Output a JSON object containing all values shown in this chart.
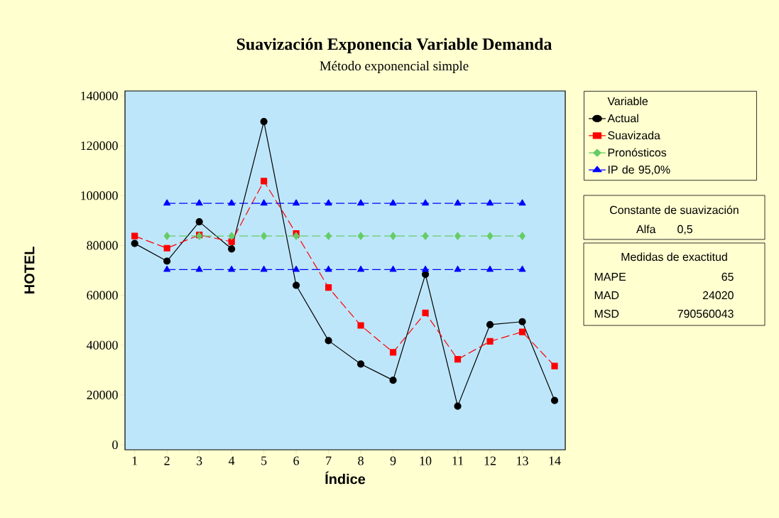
{
  "chart_data": {
    "type": "line",
    "title": "Suavización Exponencia Variable Demanda",
    "subtitle": "Método exponencial simple",
    "xlabel": "Índice",
    "ylabel": "HOTEL",
    "legend_title": "Variable",
    "legend": "right",
    "grid": false,
    "x": [
      1,
      2,
      3,
      4,
      5,
      6,
      7,
      8,
      9,
      10,
      11,
      12,
      13,
      14
    ],
    "xlim": [
      0.7,
      14.33
    ],
    "xticks": [
      1,
      2,
      3,
      4,
      5,
      6,
      7,
      8,
      9,
      10,
      11,
      12,
      13,
      14
    ],
    "ylim": [
      -2000,
      142000
    ],
    "yticks": [
      0,
      20000,
      40000,
      60000,
      80000,
      100000,
      120000,
      140000
    ],
    "series": [
      {
        "name": "Actual",
        "color": "#000000",
        "marker": "circle",
        "line_style": "solid",
        "values": [
          80800,
          73700,
          89500,
          78600,
          129700,
          64000,
          41800,
          32400,
          25900,
          68400,
          15500,
          48200,
          49400,
          17800
        ]
      },
      {
        "name": "Suavizada",
        "color": "#ff0000",
        "marker": "square",
        "line_style": "dashed",
        "values": [
          83800,
          78900,
          84200,
          81500,
          105800,
          84800,
          63100,
          47900,
          37100,
          52900,
          34300,
          41500,
          45300,
          31600
        ]
      },
      {
        "name": "Pronósticos",
        "color": "#66cc66",
        "marker": "diamond",
        "line_style": "dashed",
        "x": [
          2,
          3,
          4,
          5,
          6,
          7,
          8,
          9,
          10,
          11,
          12,
          13
        ],
        "values": [
          83800,
          83800,
          83800,
          83800,
          83800,
          83800,
          83800,
          83800,
          83800,
          83800,
          83800,
          83800
        ]
      },
      {
        "name": "IP de 95,0%",
        "color": "#0000ff",
        "marker": "triangle",
        "line_style": "dashed",
        "x": [
          2,
          3,
          4,
          5,
          6,
          7,
          8,
          9,
          10,
          11,
          12,
          13
        ],
        "values": [
          96900,
          96900,
          96900,
          96900,
          96900,
          96900,
          96900,
          96900,
          96900,
          96900,
          96900,
          96900
        ]
      },
      {
        "color": "#0000ff",
        "marker": "triangle",
        "line_style": "dashed",
        "x": [
          2,
          3,
          4,
          5,
          6,
          7,
          8,
          9,
          10,
          11,
          12,
          13
        ],
        "values": [
          70300,
          70300,
          70300,
          70300,
          70300,
          70300,
          70300,
          70300,
          70300,
          70300,
          70300,
          70300
        ]
      }
    ],
    "annotations": [
      "Constante de suavización",
      "Alfa",
      "0,5",
      "Medidas de exactitud",
      "MAPE",
      "65",
      "MAD",
      "24020",
      "MSD",
      "790560043"
    ]
  }
}
